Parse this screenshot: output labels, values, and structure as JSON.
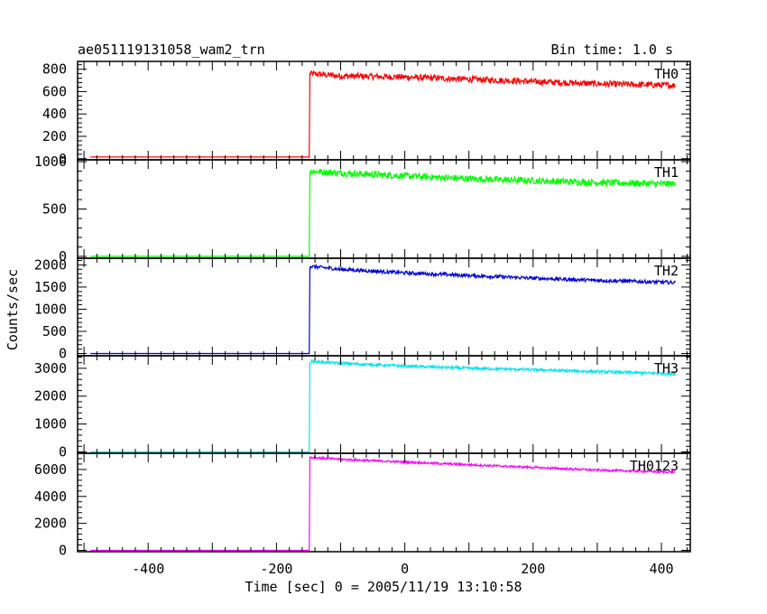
{
  "chart_data": {
    "type": "line",
    "title": "ae051119131058_wam2_trn",
    "subtitle": "Bin time: 1.0 s",
    "xlabel": "Time [sec] 0 = 2005/11/19 13:10:58",
    "ylabel": "Counts/sec",
    "xlim": [
      -510,
      445
    ],
    "xticks": [
      -400,
      -200,
      0,
      200,
      400
    ],
    "grid": false,
    "onset_x": -148,
    "end_x": 422,
    "series": [
      {
        "name": "TH0",
        "color": "#ff0000",
        "ylim": [
          -10,
          870
        ],
        "yticks": [
          0,
          200,
          400,
          600,
          800
        ],
        "pre_burst_level": 15,
        "x": [
          -148,
          -100,
          0,
          100,
          200,
          300,
          422
        ],
        "y": [
          760,
          740,
          730,
          710,
          690,
          670,
          655
        ],
        "noise": 28
      },
      {
        "name": "TH1",
        "color": "#00ff00",
        "ylim": [
          -20,
          1020
        ],
        "yticks": [
          0,
          500,
          1000
        ],
        "pre_burst_level": 0,
        "x": [
          -148,
          -100,
          0,
          100,
          200,
          300,
          422
        ],
        "y": [
          900,
          880,
          850,
          820,
          800,
          780,
          765
        ],
        "noise": 35
      },
      {
        "name": "TH2",
        "color": "#0000dd",
        "ylim": [
          -50,
          2150
        ],
        "yticks": [
          0,
          500,
          1000,
          1500,
          2000
        ],
        "pre_burst_level": 0,
        "x": [
          -148,
          -100,
          0,
          100,
          200,
          300,
          422
        ],
        "y": [
          1970,
          1900,
          1820,
          1760,
          1700,
          1650,
          1600
        ],
        "noise": 40
      },
      {
        "name": "TH3",
        "color": "#00e5ee",
        "ylim": [
          -50,
          3450
        ],
        "yticks": [
          0,
          1000,
          2000,
          3000
        ],
        "pre_burst_level": 0,
        "x": [
          -148,
          -100,
          0,
          100,
          200,
          300,
          422
        ],
        "y": [
          3250,
          3180,
          3080,
          3000,
          2950,
          2880,
          2800
        ],
        "noise": 50
      },
      {
        "name": "TH0123",
        "color": "#ff00ff",
        "ylim": [
          -100,
          7200
        ],
        "yticks": [
          0,
          2000,
          4000,
          6000
        ],
        "pre_burst_level": 0,
        "x": [
          -148,
          -100,
          0,
          100,
          200,
          300,
          422
        ],
        "y": [
          6900,
          6750,
          6550,
          6350,
          6150,
          5950,
          5800
        ],
        "noise": 80
      }
    ]
  }
}
